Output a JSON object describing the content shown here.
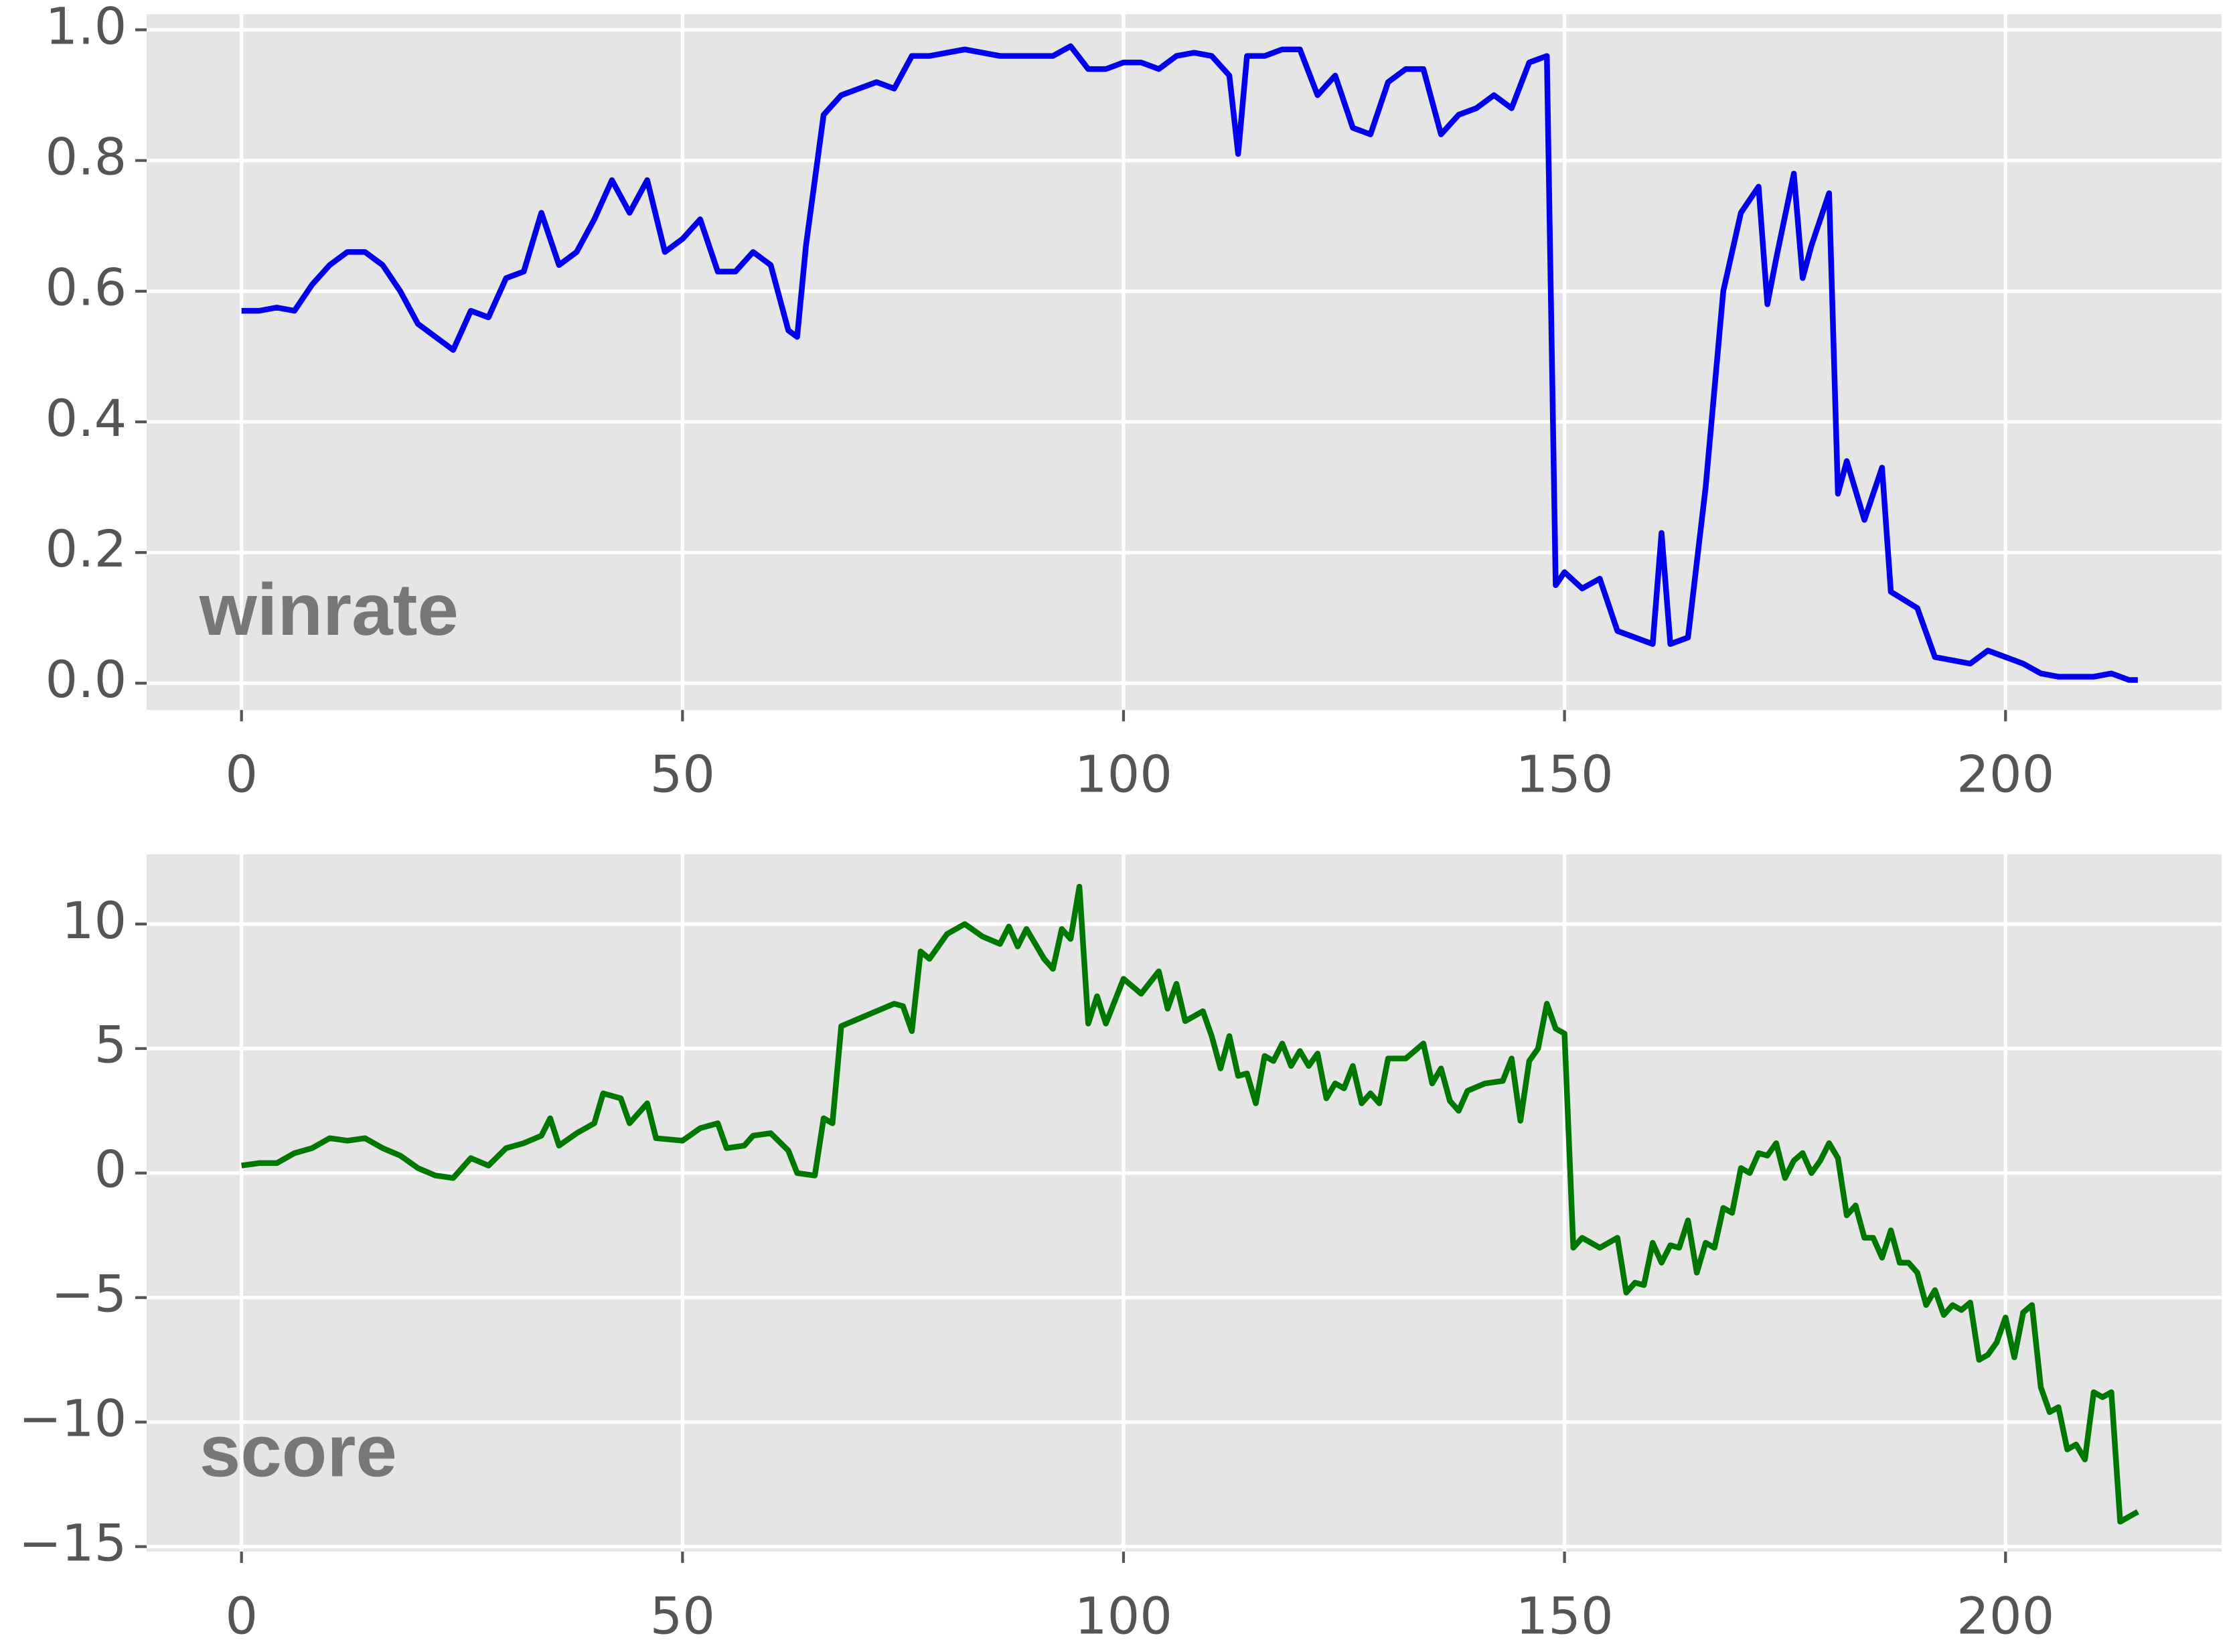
{
  "chart_data": [
    {
      "type": "line",
      "annotation": "winrate",
      "color": "#0000ee",
      "x": [
        0,
        2,
        4,
        6,
        8,
        10,
        12,
        14,
        16,
        18,
        20,
        22,
        24,
        26,
        28,
        30,
        32,
        34,
        36,
        38,
        40,
        42,
        44,
        46,
        48,
        50,
        52,
        54,
        56,
        58,
        60,
        62,
        63,
        64,
        66,
        68,
        70,
        72,
        74,
        76,
        78,
        80,
        82,
        84,
        86,
        88,
        90,
        92,
        94,
        96,
        98,
        100,
        102,
        104,
        106,
        108,
        110,
        112,
        113,
        114,
        116,
        118,
        120,
        122,
        124,
        126,
        128,
        130,
        132,
        134,
        136,
        138,
        140,
        142,
        144,
        146,
        148,
        149,
        150,
        152,
        154,
        156,
        158,
        160,
        161,
        162,
        164,
        166,
        168,
        170,
        172,
        173,
        174,
        176,
        177,
        178,
        180,
        181,
        182,
        184,
        186,
        187,
        190,
        192,
        194,
        196,
        198,
        200,
        202,
        204,
        206,
        208,
        210,
        212,
        214,
        215
      ],
      "values": [
        0.57,
        0.57,
        0.575,
        0.57,
        0.61,
        0.64,
        0.66,
        0.66,
        0.64,
        0.6,
        0.55,
        0.53,
        0.51,
        0.57,
        0.56,
        0.62,
        0.63,
        0.72,
        0.64,
        0.66,
        0.71,
        0.77,
        0.72,
        0.77,
        0.66,
        0.68,
        0.71,
        0.63,
        0.63,
        0.66,
        0.64,
        0.54,
        0.53,
        0.67,
        0.87,
        0.9,
        0.91,
        0.92,
        0.91,
        0.96,
        0.96,
        0.965,
        0.97,
        0.965,
        0.96,
        0.96,
        0.96,
        0.96,
        0.975,
        0.94,
        0.94,
        0.95,
        0.95,
        0.94,
        0.96,
        0.965,
        0.96,
        0.93,
        0.81,
        0.96,
        0.96,
        0.97,
        0.97,
        0.9,
        0.93,
        0.85,
        0.84,
        0.92,
        0.94,
        0.94,
        0.84,
        0.87,
        0.88,
        0.9,
        0.88,
        0.95,
        0.96,
        0.15,
        0.17,
        0.145,
        0.16,
        0.08,
        0.07,
        0.06,
        0.23,
        0.06,
        0.07,
        0.3,
        0.6,
        0.72,
        0.76,
        0.58,
        0.65,
        0.78,
        0.62,
        0.67,
        0.75,
        0.29,
        0.34,
        0.25,
        0.33,
        0.14,
        0.115,
        0.04,
        0.035,
        0.03,
        0.05,
        0.04,
        0.03,
        0.015,
        0.01,
        0.01,
        0.01,
        0.015,
        0.005,
        0.005
      ],
      "xlim": [
        -10.75,
        224.5
      ],
      "ylim": [
        -0.041,
        1.024
      ],
      "xticks": [
        0,
        50,
        100,
        150,
        200
      ],
      "yticks": [
        {
          "value": 0,
          "label": "0.0"
        },
        0.2,
        0.4,
        0.6,
        0.8,
        {
          "value": 1,
          "label": "1.0"
        }
      ],
      "grid": true
    },
    {
      "type": "line",
      "annotation": "score",
      "color": "#007700",
      "x": [
        0,
        2,
        4,
        6,
        8,
        10,
        12,
        14,
        16,
        18,
        20,
        22,
        24,
        26,
        28,
        30,
        32,
        34,
        35,
        36,
        38,
        40,
        41,
        43,
        44,
        46,
        47,
        50,
        52,
        54,
        55,
        57,
        58,
        60,
        62,
        63,
        65,
        66,
        67,
        68,
        70,
        72,
        74,
        75,
        76,
        77,
        78,
        80,
        82,
        84,
        86,
        87,
        88,
        89,
        91,
        92,
        93,
        94,
        95,
        96,
        97,
        98,
        100,
        102,
        104,
        105,
        106,
        107,
        109,
        110,
        111,
        112,
        113,
        114,
        115,
        116,
        117,
        118,
        119,
        120,
        121,
        122,
        123,
        124,
        125,
        126,
        127,
        128,
        129,
        130,
        132,
        134,
        135,
        136,
        137,
        138,
        139,
        141,
        143,
        144,
        145,
        146,
        147,
        148,
        149,
        150,
        151,
        152,
        154,
        156,
        157,
        158,
        159,
        160,
        161,
        162,
        163,
        164,
        165,
        166,
        167,
        168,
        169,
        170,
        171,
        172,
        173,
        174,
        175,
        176,
        177,
        178,
        179,
        180,
        181,
        182,
        183,
        184,
        185,
        186,
        187,
        188,
        189,
        190,
        191,
        192,
        193,
        194,
        195,
        196,
        197,
        198,
        199,
        200,
        201,
        202,
        203,
        204,
        205,
        206,
        207,
        208,
        209,
        210,
        211,
        212,
        213,
        214,
        215
      ],
      "values": [
        0.3,
        0.4,
        0.4,
        0.8,
        1.0,
        1.4,
        1.3,
        1.4,
        1.0,
        0.7,
        0.2,
        -0.1,
        -0.2,
        0.6,
        0.3,
        1.0,
        1.2,
        1.5,
        2.2,
        1.1,
        1.6,
        2.0,
        3.2,
        3.0,
        2.0,
        2.8,
        1.4,
        1.3,
        1.8,
        2.0,
        1.0,
        1.1,
        1.5,
        1.6,
        0.9,
        0.0,
        -0.1,
        2.2,
        2.0,
        5.9,
        6.2,
        6.5,
        6.8,
        6.7,
        5.7,
        8.9,
        8.6,
        9.6,
        10.0,
        9.5,
        9.2,
        9.9,
        9.1,
        9.8,
        8.6,
        8.2,
        9.8,
        9.4,
        11.5,
        6.0,
        7.1,
        6.0,
        7.8,
        7.2,
        8.1,
        6.6,
        7.6,
        6.1,
        6.5,
        5.5,
        4.2,
        5.5,
        3.9,
        4.0,
        2.8,
        4.7,
        4.5,
        5.2,
        4.3,
        4.9,
        4.3,
        4.8,
        3.0,
        3.6,
        3.4,
        4.3,
        2.8,
        3.2,
        2.8,
        4.6,
        4.6,
        5.2,
        3.6,
        4.2,
        2.9,
        2.5,
        3.3,
        3.6,
        3.7,
        4.6,
        2.1,
        4.5,
        5.0,
        6.8,
        5.8,
        5.6,
        -3.0,
        -2.6,
        -3.0,
        -2.6,
        -4.8,
        -4.4,
        -4.5,
        -2.8,
        -3.6,
        -2.9,
        -3.0,
        -1.9,
        -4.0,
        -2.8,
        -3.0,
        -1.4,
        -1.6,
        0.2,
        0.0,
        0.8,
        0.7,
        1.2,
        -0.2,
        0.5,
        0.8,
        0.0,
        0.5,
        1.2,
        0.6,
        -1.7,
        -1.3,
        -2.6,
        -2.6,
        -3.4,
        -2.3,
        -3.6,
        -3.6,
        -4.0,
        -5.3,
        -4.7,
        -5.7,
        -5.3,
        -5.5,
        -5.2,
        -7.5,
        -7.3,
        -6.8,
        -5.8,
        -7.4,
        -5.6,
        -5.3,
        -8.6,
        -9.6,
        -9.4,
        -11.1,
        -10.9,
        -11.5,
        -8.8,
        -9.0,
        -8.8,
        -14.0,
        -13.8,
        -13.6
      ],
      "xlim": [
        -10.75,
        224.5
      ],
      "ylim": [
        -15.2,
        12.8
      ],
      "xticks": [
        0,
        50,
        100,
        150,
        200
      ],
      "yticks": [
        {
          "value": -15,
          "label": "−15"
        },
        {
          "value": -10,
          "label": "−10"
        },
        {
          "value": -5,
          "label": "−5"
        },
        0,
        5,
        10
      ],
      "grid": true
    }
  ]
}
